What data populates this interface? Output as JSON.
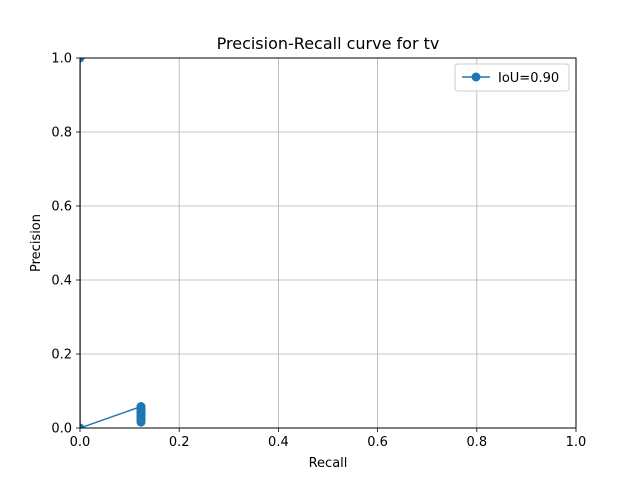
{
  "chart_data": {
    "type": "line",
    "title": "Precision-Recall curve for tv",
    "xlabel": "Recall",
    "ylabel": "Precision",
    "xlim": [
      0,
      1
    ],
    "ylim": [
      0,
      1
    ],
    "xticks": [
      0,
      0.2,
      0.4,
      0.6,
      0.8,
      1.0
    ],
    "xtick_labels": [
      "0.0",
      "0.2",
      "0.4",
      "0.6",
      "0.8",
      "1.0"
    ],
    "yticks": [
      0,
      0.2,
      0.4,
      0.6,
      0.8,
      1.0
    ],
    "ytick_labels": [
      "0.0",
      "0.2",
      "0.4",
      "0.6",
      "0.8",
      "1.0"
    ],
    "grid": true,
    "legend_position": "top-right",
    "series": [
      {
        "name": "IoU=0.90",
        "color": "#1f77b4",
        "marker": "circle",
        "x": [
          0,
          0,
          0.123,
          0.123,
          0.123,
          0.123,
          0.123,
          0.123,
          0.123,
          0.123,
          0.123,
          0.123,
          0.123,
          0.123
        ],
        "y": [
          1.0,
          0.0,
          0.058,
          0.052,
          0.047,
          0.043,
          0.039,
          0.035,
          0.031,
          0.028,
          0.025,
          0.022,
          0.019,
          0.016
        ]
      }
    ]
  }
}
